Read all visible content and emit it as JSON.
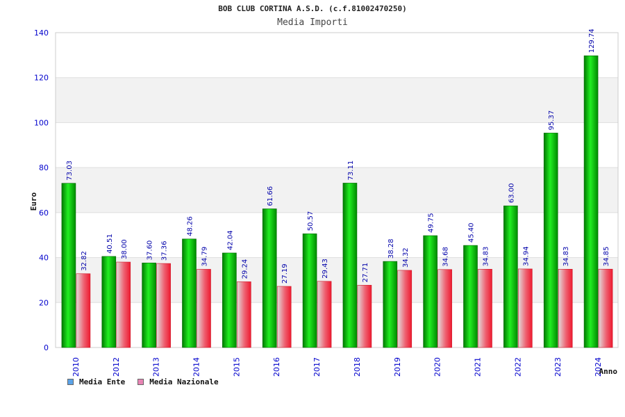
{
  "chart_data": {
    "type": "bar",
    "title": "BOB CLUB CORTINA A.S.D. (c.f.81002470250)",
    "subtitle": "Media Importi",
    "xlabel": "Anno",
    "ylabel": "Euro",
    "ylim": [
      0,
      140
    ],
    "yticks": [
      0,
      20,
      40,
      60,
      80,
      100,
      120,
      140
    ],
    "grid": true,
    "legend_position": "bottom-left",
    "categories": [
      "2010",
      "2012",
      "2013",
      "2014",
      "2015",
      "2016",
      "2017",
      "2018",
      "2019",
      "2020",
      "2021",
      "2022",
      "2023",
      "2024"
    ],
    "series": [
      {
        "name": "Media Ente",
        "values": [
          73.03,
          40.51,
          37.6,
          48.26,
          42.04,
          61.66,
          50.57,
          73.11,
          38.28,
          49.75,
          45.4,
          63.0,
          95.37,
          129.74
        ],
        "labels": [
          "73.03",
          "40.51",
          "37.60",
          "48.26",
          "42.04",
          "61.66",
          "50.57",
          "73.11",
          "38.28",
          "49.75",
          "45.40",
          "63.00",
          "95.37",
          "129.74"
        ],
        "color": "#00b400",
        "legend_color": "#5ba3e8"
      },
      {
        "name": "Media Nazionale",
        "values": [
          32.82,
          38.0,
          37.36,
          34.79,
          29.24,
          27.19,
          29.43,
          27.71,
          34.32,
          34.68,
          34.83,
          34.94,
          34.83,
          34.85
        ],
        "labels": [
          "32.82",
          "38.00",
          "37.36",
          "34.79",
          "29.24",
          "27.19",
          "29.43",
          "27.71",
          "34.32",
          "34.68",
          "34.83",
          "34.94",
          "34.83",
          "34.85"
        ],
        "color": "#ee2a3c",
        "legend_color": "#e884b4"
      }
    ]
  }
}
